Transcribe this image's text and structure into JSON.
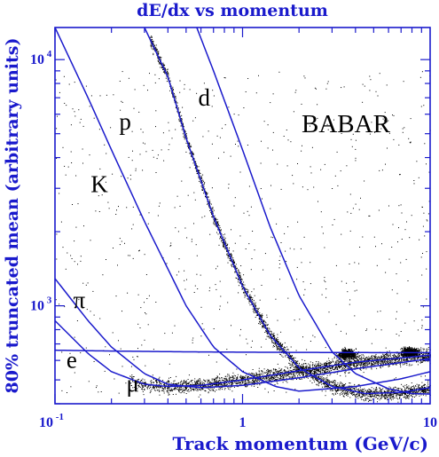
{
  "chart_data": {
    "type": "scatter",
    "title": "dE/dx vs momentum",
    "xlabel": "Track momentum (GeV/c)",
    "ylabel": "80% truncated mean (arbitrary units)",
    "x_scale": "log",
    "y_scale": "log",
    "xlim": [
      0.1,
      10
    ],
    "ylim": [
      400,
      13500
    ],
    "grid": false,
    "annotation": "BABAR",
    "x_ticks": [
      {
        "value": 0.1,
        "base": "10",
        "exp": "-1"
      },
      {
        "value": 1,
        "label": "1"
      },
      {
        "value": 10,
        "label": "10"
      }
    ],
    "y_ticks": [
      {
        "value": 1000,
        "base": "10",
        "exp": "3"
      },
      {
        "value": 10000,
        "base": "10",
        "exp": "4"
      }
    ],
    "colors": {
      "axis": "#1a1acc",
      "curve": "#1a1acc",
      "points": "#000000"
    },
    "series": [
      {
        "name": "e",
        "label_at": [
          0.115,
          560
        ],
        "points": [
          [
            0.1,
            660
          ],
          [
            0.2,
            655
          ],
          [
            0.5,
            650
          ],
          [
            1,
            648
          ],
          [
            3,
            646
          ],
          [
            10,
            645
          ]
        ]
      },
      {
        "name": "μ",
        "label_at": [
          0.24,
          450
        ],
        "points": [
          [
            0.1,
            870
          ],
          [
            0.15,
            640
          ],
          [
            0.2,
            540
          ],
          [
            0.3,
            480
          ],
          [
            0.4,
            470
          ],
          [
            0.6,
            475
          ],
          [
            1,
            500
          ],
          [
            2,
            545
          ],
          [
            4,
            590
          ],
          [
            10,
            630
          ]
        ]
      },
      {
        "name": "π",
        "label_at": [
          0.125,
          980
        ],
        "points": [
          [
            0.1,
            1290
          ],
          [
            0.15,
            870
          ],
          [
            0.2,
            680
          ],
          [
            0.3,
            530
          ],
          [
            0.4,
            480
          ],
          [
            0.6,
            465
          ],
          [
            1,
            475
          ],
          [
            2,
            510
          ],
          [
            4,
            555
          ],
          [
            10,
            610
          ]
        ]
      },
      {
        "name": "K",
        "label_at": [
          0.155,
          2900
        ],
        "points": [
          [
            0.1,
            13500
          ],
          [
            0.15,
            7000
          ],
          [
            0.2,
            4300
          ],
          [
            0.3,
            2200
          ],
          [
            0.5,
            1000
          ],
          [
            0.7,
            680
          ],
          [
            1,
            540
          ],
          [
            1.5,
            470
          ],
          [
            2,
            450
          ],
          [
            4,
            470
          ],
          [
            7,
            505
          ],
          [
            10,
            540
          ]
        ]
      },
      {
        "name": "p",
        "label_at": [
          0.22,
          5200
        ],
        "points": [
          [
            0.3,
            13500
          ],
          [
            0.4,
            8500
          ],
          [
            0.5,
            4800
          ],
          [
            0.7,
            2300
          ],
          [
            1,
            1200
          ],
          [
            1.4,
            760
          ],
          [
            2,
            560
          ],
          [
            3,
            470
          ],
          [
            4.5,
            440
          ],
          [
            7,
            445
          ],
          [
            10,
            465
          ]
        ]
      },
      {
        "name": "d",
        "label_at": [
          0.58,
          6500
        ],
        "points": [
          [
            0.57,
            13500
          ],
          [
            0.7,
            9000
          ],
          [
            1,
            4300
          ],
          [
            1.4,
            2100
          ],
          [
            2,
            1100
          ],
          [
            3,
            650
          ],
          [
            4,
            530
          ],
          [
            6,
            460
          ],
          [
            8,
            440
          ],
          [
            10,
            438
          ]
        ]
      }
    ]
  }
}
